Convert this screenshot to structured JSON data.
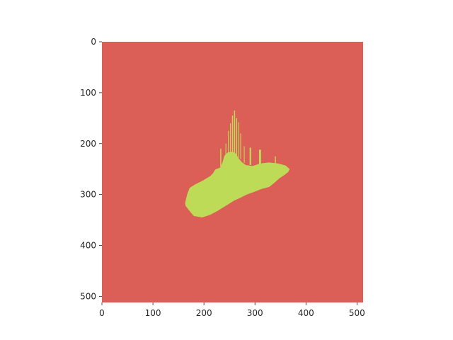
{
  "chart_data": {
    "type": "heatmap",
    "title": "",
    "xlabel": "",
    "ylabel": "",
    "xlim": [
      0,
      512
    ],
    "ylim": [
      512,
      0
    ],
    "grid": false,
    "xticks": [
      "0",
      "100",
      "200",
      "300",
      "400",
      "500"
    ],
    "yticks": [
      "0",
      "100",
      "200",
      "300",
      "400",
      "500"
    ],
    "classes": [
      {
        "value": 0,
        "color": "#db5f57"
      },
      {
        "value": 1,
        "color": "#bedb57"
      }
    ],
    "mask_region": {
      "label_value": 1,
      "body_outline": [
        [
          163,
          317
        ],
        [
          167,
          300
        ],
        [
          172,
          287
        ],
        [
          183,
          280
        ],
        [
          197,
          273
        ],
        [
          212,
          264
        ],
        [
          218,
          258
        ],
        [
          222,
          251
        ],
        [
          232,
          247
        ],
        [
          236,
          238
        ],
        [
          240,
          224
        ],
        [
          247,
          217
        ],
        [
          256,
          216
        ],
        [
          263,
          220
        ],
        [
          268,
          229
        ],
        [
          275,
          237
        ],
        [
          282,
          242
        ],
        [
          295,
          244
        ],
        [
          311,
          239
        ],
        [
          327,
          237
        ],
        [
          345,
          239
        ],
        [
          360,
          243
        ],
        [
          368,
          250
        ],
        [
          365,
          256
        ],
        [
          357,
          262
        ],
        [
          348,
          268
        ],
        [
          338,
          277
        ],
        [
          328,
          285
        ],
        [
          313,
          289
        ],
        [
          298,
          295
        ],
        [
          284,
          300
        ],
        [
          272,
          306
        ],
        [
          259,
          312
        ],
        [
          248,
          319
        ],
        [
          238,
          325
        ],
        [
          227,
          332
        ],
        [
          212,
          340
        ],
        [
          196,
          345
        ],
        [
          180,
          342
        ],
        [
          170,
          330
        ],
        [
          164,
          322
        ]
      ],
      "spikes": [
        {
          "x": 260,
          "base": 225,
          "top": 135,
          "width": 2
        },
        {
          "x": 256,
          "base": 228,
          "top": 145,
          "width": 2
        },
        {
          "x": 264,
          "base": 226,
          "top": 150,
          "width": 2
        },
        {
          "x": 252,
          "base": 230,
          "top": 160,
          "width": 1.5
        },
        {
          "x": 268,
          "base": 228,
          "top": 158,
          "width": 1.5
        },
        {
          "x": 248,
          "base": 232,
          "top": 175,
          "width": 1.5
        },
        {
          "x": 272,
          "base": 230,
          "top": 180,
          "width": 1.5
        },
        {
          "x": 233,
          "base": 246,
          "top": 210,
          "width": 2
        },
        {
          "x": 243,
          "base": 230,
          "top": 200,
          "width": 1.5
        },
        {
          "x": 279,
          "base": 238,
          "top": 205,
          "width": 1.5
        },
        {
          "x": 291,
          "base": 242,
          "top": 208,
          "width": 3
        },
        {
          "x": 310,
          "base": 240,
          "top": 212,
          "width": 4
        },
        {
          "x": 340,
          "base": 240,
          "top": 225,
          "width": 2
        }
      ]
    }
  }
}
